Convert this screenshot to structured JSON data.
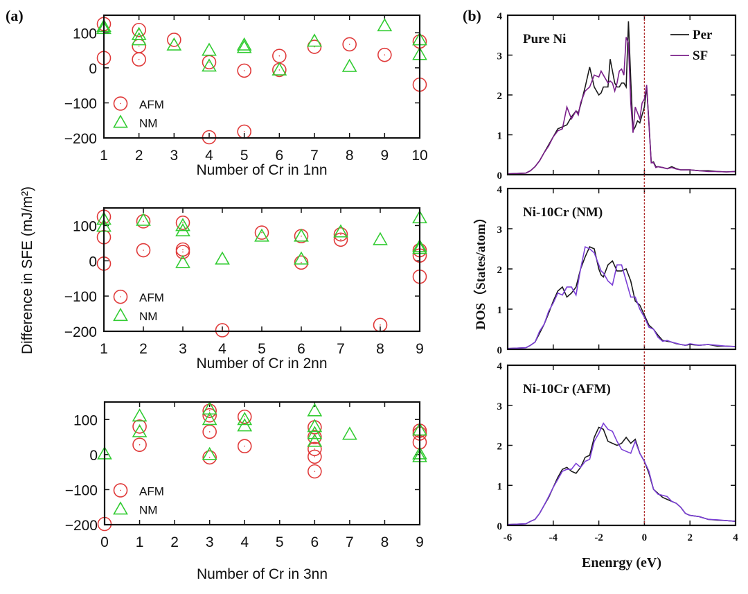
{
  "panel_labels": {
    "a": "(a)",
    "b": "(b)"
  },
  "colors": {
    "afm": "#e03a3a",
    "nm": "#33cc33",
    "per": "#1a1a1a",
    "sf_top": "#7a1f8a",
    "sf": "#7b3fd6",
    "fermi_line": "#b03030",
    "axes": "#111111"
  },
  "shared_ylabel_a": "Difference in SFE (mJ/m²)",
  "shared_ylabel_b": "DOS（States/atom）",
  "chart_data": [
    {
      "id": "sfe-1nn",
      "type": "scatter",
      "title": "",
      "xlabel": "Number of Cr in 1nn",
      "ylabel": "Difference in SFE (mJ/m²)",
      "xlim": [
        1,
        10
      ],
      "ylim": [
        -200,
        150
      ],
      "xticks": [
        1,
        2,
        3,
        4,
        5,
        6,
        7,
        8,
        9,
        10
      ],
      "yticks": [
        -200,
        -100,
        0,
        100
      ],
      "legend": {
        "position": "left-middle",
        "entries": [
          "AFM",
          "NM"
        ]
      },
      "series": [
        {
          "name": "AFM",
          "marker": "circle",
          "x": [
            1,
            1,
            2,
            2,
            2,
            3,
            4,
            4,
            5,
            5,
            6,
            6,
            7,
            8,
            9,
            10,
            10
          ],
          "y": [
            125,
            28,
            108,
            62,
            24,
            80,
            16,
            -198,
            -8,
            -182,
            34,
            -6,
            60,
            67,
            37,
            75,
            -48
          ]
        },
        {
          "name": "NM",
          "marker": "triangle",
          "x": [
            1,
            1,
            2,
            2,
            3,
            4,
            4,
            5,
            5,
            6,
            7,
            8,
            9,
            10,
            10
          ],
          "y": [
            118,
            112,
            95,
            80,
            65,
            50,
            5,
            65,
            58,
            -6,
            76,
            4,
            120,
            80,
            38
          ]
        }
      ]
    },
    {
      "id": "sfe-2nn",
      "type": "scatter",
      "title": "",
      "xlabel": "Number of Cr in 2nn",
      "ylabel": "Difference in SFE (mJ/m²)",
      "xlim": [
        1,
        9
      ],
      "ylim": [
        -200,
        150
      ],
      "xticks": [
        1,
        2,
        3,
        4,
        5,
        6,
        7,
        8,
        9
      ],
      "yticks": [
        -200,
        -100,
        0,
        100
      ],
      "legend": {
        "position": "left-middle",
        "entries": [
          "AFM",
          "NM"
        ]
      },
      "series": [
        {
          "name": "AFM",
          "marker": "circle",
          "x": [
            1,
            1,
            1,
            2,
            2,
            3,
            3,
            3,
            4,
            5,
            6,
            6,
            7,
            7,
            8,
            9,
            9,
            9
          ],
          "y": [
            125,
            67,
            -8,
            112,
            30,
            108,
            32,
            25,
            -197,
            80,
            70,
            -5,
            75,
            60,
            -182,
            30,
            15,
            -45
          ]
        },
        {
          "name": "NM",
          "marker": "triangle",
          "x": [
            1,
            1,
            2,
            3,
            3,
            3,
            4,
            5,
            6,
            6,
            7,
            8,
            9,
            9,
            9
          ],
          "y": [
            118,
            98,
            115,
            100,
            85,
            -5,
            5,
            70,
            70,
            5,
            82,
            60,
            122,
            40,
            35
          ]
        }
      ]
    },
    {
      "id": "sfe-3nn",
      "type": "scatter",
      "title": "",
      "xlabel": "Number of Cr in 3nn",
      "ylabel": "Difference in SFE (mJ/m²)",
      "xlim": [
        0,
        9
      ],
      "ylim": [
        -200,
        150
      ],
      "xticks": [
        0,
        1,
        2,
        3,
        4,
        5,
        6,
        7,
        8,
        9
      ],
      "yticks": [
        -200,
        -100,
        0,
        100
      ],
      "legend": {
        "position": "left-middle",
        "entries": [
          "AFM",
          "NM"
        ]
      },
      "series": [
        {
          "name": "AFM",
          "marker": "circle",
          "x": [
            0,
            1,
            1,
            3,
            3,
            3,
            3,
            4,
            4,
            6,
            6,
            6,
            6,
            6,
            9,
            9,
            9
          ],
          "y": [
            -198,
            80,
            28,
            125,
            112,
            65,
            -8,
            108,
            24,
            78,
            50,
            16,
            -6,
            -48,
            68,
            60,
            35
          ]
        },
        {
          "name": "NM",
          "marker": "triangle",
          "x": [
            0,
            1,
            1,
            3,
            3,
            3,
            4,
            4,
            6,
            6,
            6,
            6,
            7,
            9,
            9,
            9
          ],
          "y": [
            2,
            110,
            65,
            130,
            100,
            0,
            100,
            82,
            125,
            80,
            60,
            38,
            58,
            70,
            2,
            -6
          ]
        }
      ]
    },
    {
      "id": "dos-pure-ni",
      "type": "line",
      "title": "Pure Ni",
      "xlabel": "",
      "ylabel": "DOS（States/atom）",
      "xlim": [
        -6,
        4
      ],
      "ylim": [
        0,
        4
      ],
      "xticks": [
        -6,
        -4,
        -2,
        0,
        2,
        4
      ],
      "yticks": [
        0,
        1,
        2,
        3,
        4
      ],
      "fermi_level": 0,
      "legend": {
        "position": "top-right",
        "entries": [
          "Per",
          "SF"
        ]
      },
      "series": [
        {
          "name": "Per",
          "x": [
            -6,
            -5.6,
            -5.2,
            -5.0,
            -4.8,
            -4.6,
            -4.4,
            -4.2,
            -4.0,
            -3.8,
            -3.6,
            -3.4,
            -3.2,
            -3.0,
            -2.9,
            -2.8,
            -2.6,
            -2.4,
            -2.2,
            -2.0,
            -1.9,
            -1.8,
            -1.6,
            -1.5,
            -1.4,
            -1.3,
            -1.2,
            -1.1,
            -1.0,
            -0.9,
            -0.8,
            -0.7,
            -0.6,
            -0.5,
            -0.4,
            -0.3,
            -0.2,
            -0.1,
            0.0,
            0.1,
            0.2,
            0.3,
            0.4,
            0.5,
            0.6,
            0.8,
            1.0,
            1.2,
            1.4,
            1.6,
            2.0,
            2.4,
            2.8,
            3.2,
            3.6,
            4.0
          ],
          "y": [
            0.02,
            0.03,
            0.04,
            0.1,
            0.2,
            0.35,
            0.55,
            0.75,
            0.95,
            1.15,
            1.2,
            1.25,
            1.45,
            1.6,
            1.55,
            1.75,
            2.2,
            2.7,
            2.2,
            2.0,
            2.05,
            2.2,
            2.2,
            2.9,
            2.6,
            2.3,
            2.2,
            2.2,
            2.3,
            2.3,
            2.2,
            3.85,
            2.4,
            1.1,
            1.2,
            1.35,
            1.3,
            1.5,
            1.7,
            2.2,
            1.3,
            0.3,
            0.32,
            0.2,
            0.2,
            0.18,
            0.15,
            0.2,
            0.15,
            0.12,
            0.12,
            0.1,
            0.1,
            0.08,
            0.07,
            0.08
          ]
        },
        {
          "name": "SF",
          "x": [
            -6,
            -5.6,
            -5.2,
            -5.0,
            -4.8,
            -4.6,
            -4.4,
            -4.2,
            -4.0,
            -3.8,
            -3.6,
            -3.4,
            -3.2,
            -3.0,
            -2.9,
            -2.8,
            -2.6,
            -2.4,
            -2.2,
            -2.0,
            -1.9,
            -1.8,
            -1.6,
            -1.5,
            -1.4,
            -1.3,
            -1.2,
            -1.1,
            -1.0,
            -0.9,
            -0.8,
            -0.7,
            -0.6,
            -0.5,
            -0.4,
            -0.3,
            -0.2,
            -0.1,
            0.0,
            0.1,
            0.2,
            0.3,
            0.4,
            0.5,
            0.6,
            0.8,
            1.0,
            1.2,
            1.4,
            1.6,
            2.0,
            2.4,
            2.8,
            3.2,
            3.6,
            4.0
          ],
          "y": [
            0.02,
            0.03,
            0.04,
            0.1,
            0.2,
            0.35,
            0.55,
            0.72,
            0.95,
            1.1,
            1.15,
            1.7,
            1.4,
            1.6,
            1.5,
            1.8,
            2.1,
            2.2,
            2.5,
            2.45,
            2.6,
            2.5,
            2.3,
            2.35,
            2.3,
            2.1,
            2.3,
            2.6,
            2.65,
            2.5,
            3.45,
            3.3,
            1.8,
            1.05,
            1.7,
            1.55,
            1.4,
            1.8,
            1.9,
            2.25,
            1.25,
            0.3,
            0.3,
            0.18,
            0.2,
            0.18,
            0.15,
            0.18,
            0.14,
            0.12,
            0.12,
            0.1,
            0.08,
            0.08,
            0.07,
            0.08
          ]
        }
      ]
    },
    {
      "id": "dos-ni10cr-nm",
      "type": "line",
      "title": "Ni-10Cr (NM)",
      "xlabel": "",
      "ylabel": "DOS（States/atom）",
      "xlim": [
        -6,
        4
      ],
      "ylim": [
        0,
        4
      ],
      "xticks": [
        -6,
        -4,
        -2,
        0,
        2,
        4
      ],
      "yticks": [
        0,
        1,
        2,
        3,
        4
      ],
      "fermi_level": 0,
      "series": [
        {
          "name": "Per",
          "x": [
            -6,
            -5.6,
            -5.2,
            -5.0,
            -4.8,
            -4.6,
            -4.4,
            -4.2,
            -4.0,
            -3.8,
            -3.6,
            -3.4,
            -3.2,
            -3.0,
            -2.8,
            -2.6,
            -2.4,
            -2.2,
            -2.0,
            -1.9,
            -1.8,
            -1.6,
            -1.4,
            -1.2,
            -1.0,
            -0.8,
            -0.6,
            -0.4,
            -0.2,
            0.0,
            0.2,
            0.4,
            0.6,
            0.8,
            1.0,
            1.2,
            1.4,
            1.6,
            1.8,
            2.0,
            2.4,
            2.8,
            3.2,
            3.6,
            4.0
          ],
          "y": [
            0.02,
            0.03,
            0.04,
            0.1,
            0.18,
            0.4,
            0.62,
            0.9,
            1.2,
            1.45,
            1.55,
            1.3,
            1.4,
            1.55,
            2.0,
            2.3,
            2.55,
            2.5,
            2.0,
            1.85,
            1.8,
            2.1,
            2.2,
            1.95,
            1.95,
            2.0,
            1.7,
            1.2,
            1.1,
            0.85,
            0.6,
            0.5,
            0.35,
            0.22,
            0.2,
            0.18,
            0.14,
            0.12,
            0.1,
            0.12,
            0.1,
            0.12,
            0.08,
            0.08,
            0.07
          ]
        },
        {
          "name": "SF",
          "x": [
            -6,
            -5.6,
            -5.2,
            -5.0,
            -4.8,
            -4.6,
            -4.4,
            -4.2,
            -4.0,
            -3.8,
            -3.6,
            -3.4,
            -3.2,
            -3.0,
            -2.8,
            -2.6,
            -2.4,
            -2.2,
            -2.0,
            -1.9,
            -1.8,
            -1.6,
            -1.4,
            -1.2,
            -1.0,
            -0.8,
            -0.6,
            -0.4,
            -0.2,
            0.0,
            0.2,
            0.4,
            0.6,
            0.8,
            1.0,
            1.2,
            1.4,
            1.6,
            1.8,
            2.0,
            2.4,
            2.8,
            3.2,
            3.6,
            4.0
          ],
          "y": [
            0.02,
            0.03,
            0.04,
            0.1,
            0.18,
            0.45,
            0.62,
            0.95,
            1.15,
            1.4,
            1.35,
            1.55,
            1.55,
            1.35,
            2.0,
            2.55,
            2.5,
            2.4,
            2.1,
            1.95,
            1.9,
            1.7,
            1.6,
            2.1,
            2.1,
            1.7,
            1.3,
            1.3,
            1.0,
            0.8,
            0.55,
            0.5,
            0.3,
            0.2,
            0.22,
            0.18,
            0.15,
            0.12,
            0.1,
            0.14,
            0.1,
            0.12,
            0.1,
            0.08,
            0.07
          ]
        }
      ]
    },
    {
      "id": "dos-ni10cr-afm",
      "type": "line",
      "title": "Ni-10Cr (AFM)",
      "xlabel": "Enenrgy (eV)",
      "ylabel": "DOS（States/atom）",
      "xlim": [
        -6,
        4
      ],
      "ylim": [
        0,
        4
      ],
      "xticks": [
        -6,
        -4,
        -2,
        0,
        2,
        4
      ],
      "yticks": [
        0,
        1,
        2,
        3,
        4
      ],
      "fermi_level": 0,
      "series": [
        {
          "name": "Per",
          "x": [
            -6,
            -5.6,
            -5.2,
            -5.0,
            -4.8,
            -4.6,
            -4.4,
            -4.2,
            -4.0,
            -3.8,
            -3.6,
            -3.4,
            -3.2,
            -3.0,
            -2.8,
            -2.6,
            -2.4,
            -2.2,
            -2.0,
            -1.8,
            -1.6,
            -1.4,
            -1.2,
            -1.0,
            -0.8,
            -0.6,
            -0.4,
            -0.2,
            0.0,
            0.2,
            0.4,
            0.6,
            0.8,
            1.0,
            1.2,
            1.4,
            1.6,
            1.8,
            2.0,
            2.4,
            2.8,
            3.2,
            3.6,
            4.0
          ],
          "y": [
            0.02,
            0.03,
            0.04,
            0.1,
            0.15,
            0.3,
            0.5,
            0.7,
            0.95,
            1.2,
            1.4,
            1.45,
            1.35,
            1.3,
            1.45,
            1.7,
            1.75,
            2.2,
            2.45,
            2.4,
            2.1,
            2.05,
            2.0,
            2.05,
            2.2,
            2.05,
            2.15,
            1.8,
            1.6,
            1.3,
            0.9,
            0.8,
            0.7,
            0.65,
            0.6,
            0.55,
            0.45,
            0.3,
            0.25,
            0.22,
            0.15,
            0.13,
            0.12,
            0.1
          ]
        },
        {
          "name": "SF",
          "x": [
            -6,
            -5.6,
            -5.2,
            -5.0,
            -4.8,
            -4.6,
            -4.4,
            -4.2,
            -4.0,
            -3.8,
            -3.6,
            -3.4,
            -3.2,
            -3.0,
            -2.8,
            -2.6,
            -2.4,
            -2.2,
            -2.0,
            -1.8,
            -1.6,
            -1.4,
            -1.2,
            -1.0,
            -0.8,
            -0.6,
            -0.4,
            -0.2,
            0.0,
            0.2,
            0.4,
            0.6,
            0.8,
            1.0,
            1.2,
            1.4,
            1.6,
            1.8,
            2.0,
            2.4,
            2.8,
            3.2,
            3.6,
            4.0
          ],
          "y": [
            0.02,
            0.03,
            0.04,
            0.1,
            0.15,
            0.3,
            0.5,
            0.72,
            0.95,
            1.15,
            1.35,
            1.4,
            1.4,
            1.55,
            1.45,
            1.6,
            1.65,
            2.1,
            2.3,
            2.55,
            2.4,
            2.35,
            2.1,
            1.9,
            1.85,
            1.8,
            2.1,
            1.8,
            1.6,
            1.35,
            0.9,
            0.78,
            0.75,
            0.72,
            0.6,
            0.55,
            0.45,
            0.3,
            0.25,
            0.22,
            0.15,
            0.14,
            0.12,
            0.1
          ]
        }
      ]
    }
  ]
}
